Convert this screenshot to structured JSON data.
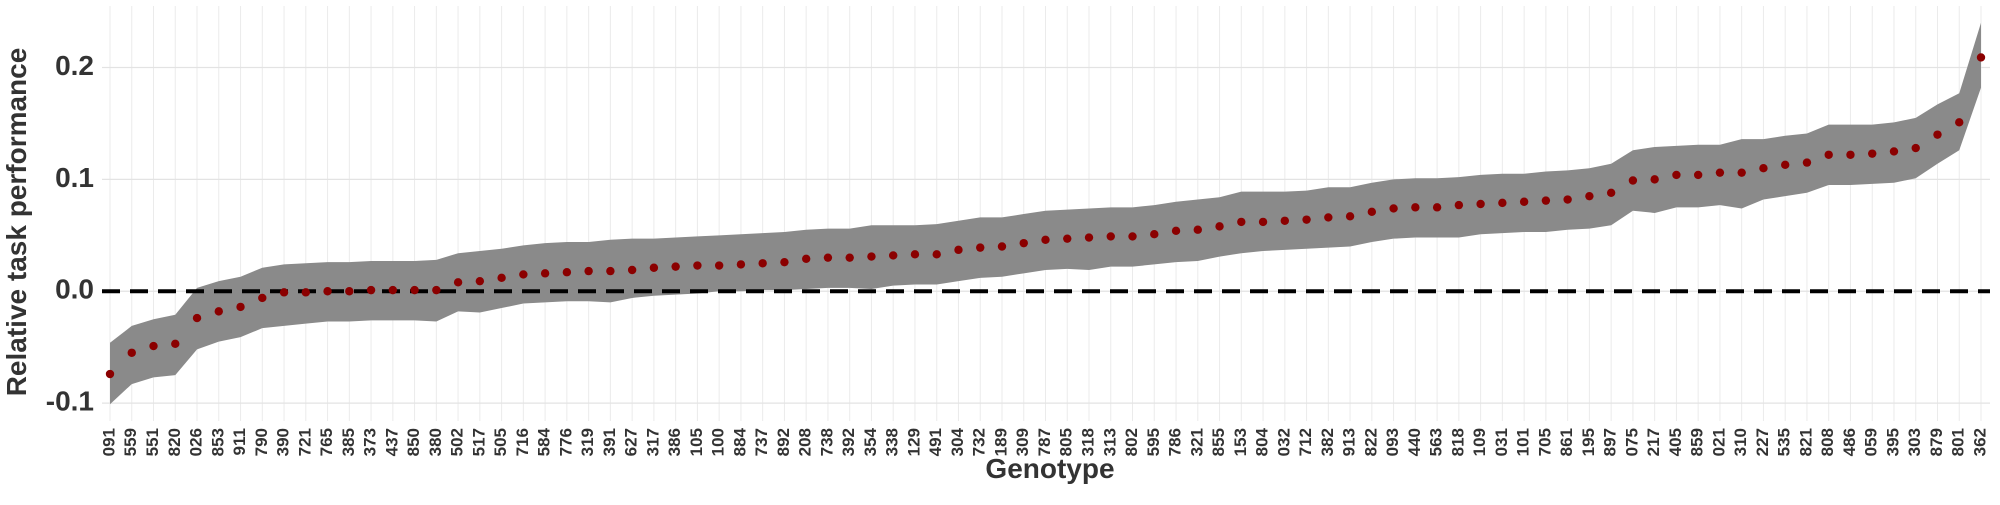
{
  "chart_data": {
    "type": "ribbon-dot",
    "x_label": "Genotype",
    "y_label": "Relative task performance",
    "categories": [
      "091",
      "559",
      "551",
      "820",
      "026",
      "853",
      "911",
      "790",
      "390",
      "721",
      "765",
      "385",
      "373",
      "437",
      "850",
      "380",
      "502",
      "517",
      "505",
      "716",
      "584",
      "776",
      "319",
      "391",
      "627",
      "317",
      "386",
      "105",
      "100",
      "884",
      "737",
      "892",
      "208",
      "738",
      "392",
      "354",
      "338",
      "129",
      "491",
      "304",
      "732",
      "189",
      "309",
      "787",
      "805",
      "318",
      "313",
      "802",
      "595",
      "786",
      "321",
      "855",
      "153",
      "804",
      "032",
      "712",
      "382",
      "913",
      "822",
      "093",
      "440",
      "563",
      "818",
      "109",
      "031",
      "101",
      "705",
      "861",
      "195",
      "897",
      "075",
      "217",
      "405",
      "859",
      "021",
      "310",
      "227",
      "535",
      "821",
      "808",
      "486",
      "059",
      "395",
      "303",
      "879",
      "801",
      "362"
    ],
    "values": [
      -0.074,
      -0.055,
      -0.049,
      -0.047,
      -0.024,
      -0.018,
      -0.014,
      -0.006,
      -0.001,
      -0.001,
      0.0,
      0.0,
      0.001,
      0.001,
      0.001,
      0.001,
      0.008,
      0.009,
      0.012,
      0.015,
      0.016,
      0.017,
      0.018,
      0.018,
      0.019,
      0.021,
      0.022,
      0.023,
      0.023,
      0.024,
      0.025,
      0.026,
      0.029,
      0.03,
      0.03,
      0.031,
      0.032,
      0.033,
      0.033,
      0.037,
      0.039,
      0.04,
      0.043,
      0.046,
      0.047,
      0.048,
      0.049,
      0.049,
      0.051,
      0.054,
      0.055,
      0.058,
      0.062,
      0.062,
      0.063,
      0.064,
      0.066,
      0.067,
      0.071,
      0.074,
      0.075,
      0.075,
      0.077,
      0.078,
      0.079,
      0.08,
      0.081,
      0.082,
      0.085,
      0.088,
      0.099,
      0.1,
      0.104,
      0.104,
      0.106,
      0.106,
      0.11,
      0.113,
      0.115,
      0.122,
      0.122,
      0.123,
      0.125,
      0.128,
      0.14,
      0.151,
      0.209
    ],
    "lower": [
      -0.101,
      -0.083,
      -0.077,
      -0.075,
      -0.052,
      -0.045,
      -0.041,
      -0.033,
      -0.031,
      -0.029,
      -0.027,
      -0.027,
      -0.026,
      -0.026,
      -0.026,
      -0.027,
      -0.018,
      -0.019,
      -0.015,
      -0.011,
      -0.01,
      -0.009,
      -0.009,
      -0.01,
      -0.006,
      -0.004,
      -0.003,
      -0.002,
      0.0,
      0.0,
      0.001,
      0.001,
      0.002,
      0.003,
      0.003,
      0.002,
      0.005,
      0.006,
      0.006,
      0.009,
      0.012,
      0.013,
      0.016,
      0.019,
      0.02,
      0.019,
      0.022,
      0.022,
      0.024,
      0.026,
      0.027,
      0.031,
      0.034,
      0.036,
      0.037,
      0.038,
      0.039,
      0.04,
      0.044,
      0.047,
      0.048,
      0.048,
      0.048,
      0.051,
      0.052,
      0.053,
      0.053,
      0.055,
      0.056,
      0.059,
      0.072,
      0.07,
      0.075,
      0.075,
      0.077,
      0.074,
      0.082,
      0.085,
      0.088,
      0.095,
      0.095,
      0.096,
      0.097,
      0.101,
      0.114,
      0.126,
      0.182
    ],
    "upper": [
      -0.046,
      -0.031,
      -0.025,
      -0.021,
      0.003,
      0.009,
      0.013,
      0.021,
      0.024,
      0.025,
      0.026,
      0.026,
      0.027,
      0.027,
      0.027,
      0.028,
      0.034,
      0.036,
      0.038,
      0.041,
      0.043,
      0.044,
      0.044,
      0.046,
      0.047,
      0.047,
      0.048,
      0.049,
      0.05,
      0.051,
      0.052,
      0.053,
      0.055,
      0.056,
      0.056,
      0.059,
      0.059,
      0.059,
      0.06,
      0.063,
      0.066,
      0.066,
      0.069,
      0.072,
      0.073,
      0.074,
      0.075,
      0.075,
      0.077,
      0.08,
      0.082,
      0.084,
      0.089,
      0.089,
      0.089,
      0.09,
      0.093,
      0.093,
      0.097,
      0.1,
      0.101,
      0.101,
      0.102,
      0.104,
      0.105,
      0.105,
      0.107,
      0.108,
      0.11,
      0.114,
      0.126,
      0.129,
      0.13,
      0.131,
      0.131,
      0.136,
      0.136,
      0.139,
      0.141,
      0.149,
      0.149,
      0.149,
      0.151,
      0.155,
      0.167,
      0.177,
      0.24
    ],
    "color": "#8b0000",
    "band_color": "#8a8a8a",
    "hline": 0,
    "ylim": [
      -0.116,
      0.255
    ],
    "yticks": [
      -0.1,
      {
        "value": 0,
        "label": "0.0"
      },
      0.1,
      0.2
    ],
    "grid": true
  }
}
